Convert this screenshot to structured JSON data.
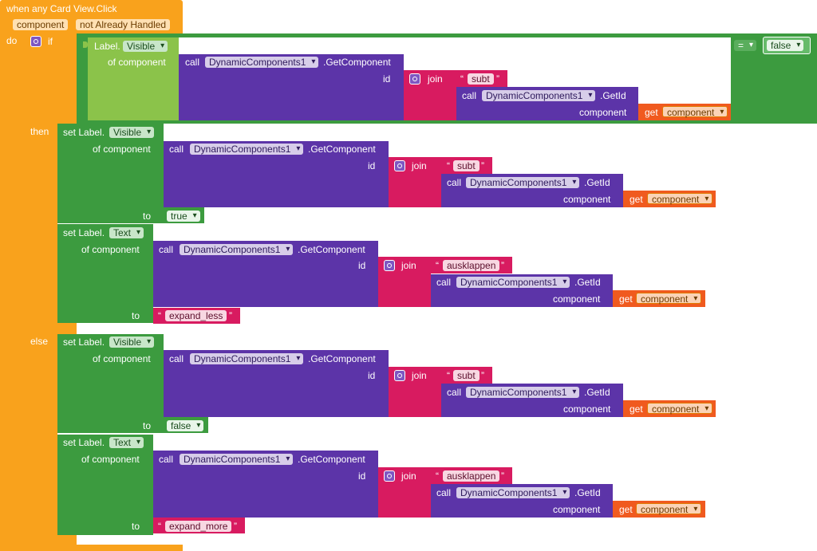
{
  "event": {
    "title": "when any Card View.Click",
    "param_component": "component",
    "param_not_handled": "not Already Handled"
  },
  "labels": {
    "do": "do",
    "if": "if",
    "then": "then",
    "else": "else"
  },
  "kw": {
    "label_prefix": "Label.",
    "set_label_prefix": "set Label.",
    "of_component": "of component",
    "call": "call",
    "dot_get_component": ".GetComponent",
    "dot_get_id": ".GetId",
    "id": "id",
    "join": "join",
    "component": "component",
    "get": "get",
    "to": "to",
    "quote_open": "“",
    "quote_close": "”"
  },
  "values": {
    "visible": "Visible",
    "text": "Text",
    "dynamic_components": "DynamicComponents1",
    "get_var": "component",
    "subt": "subt",
    "ausklappen": "ausklappen",
    "equals": "=",
    "false": "false",
    "true": "true",
    "expand_less": "expand_less",
    "expand_more": "expand_more"
  }
}
